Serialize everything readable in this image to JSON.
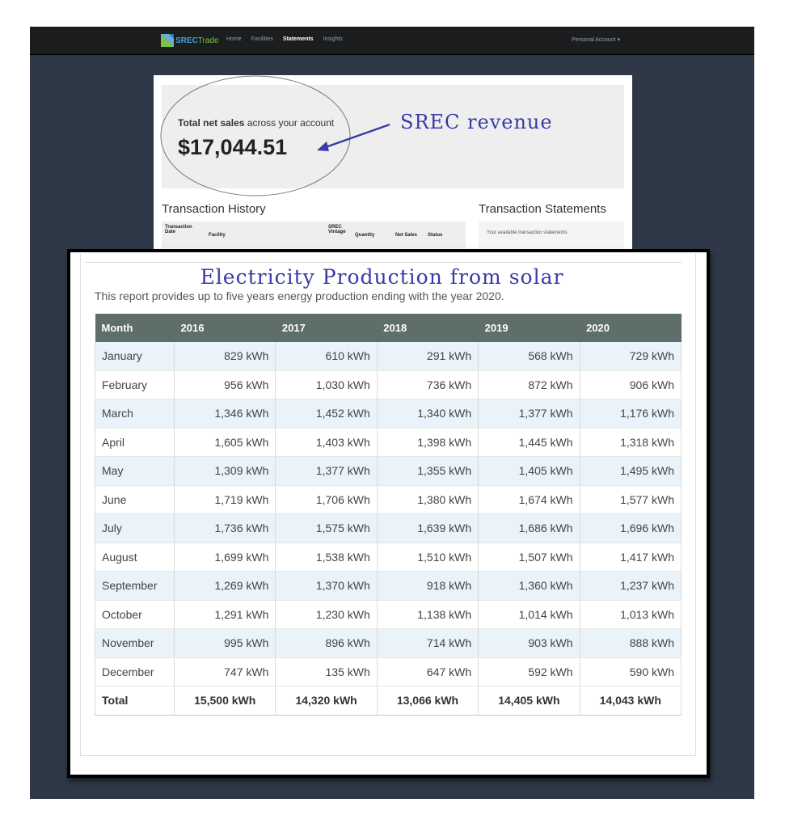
{
  "navbar": {
    "logo_a": "SREC",
    "logo_b": "Trade",
    "links": [
      "Home",
      "Facilities",
      "Statements",
      "Insights"
    ],
    "active_index": 2,
    "account": "Personal Account ▾"
  },
  "summary": {
    "label_bold": "Total net sales",
    "label_rest": " across your account",
    "amount": "$17,044.51",
    "annotation": "SREC revenue"
  },
  "transaction_history": {
    "title": "Transaction History",
    "columns": [
      "Transaction Date",
      "Facility",
      "SREC Vintage",
      "Quantity",
      "Net Sales",
      "Status"
    ]
  },
  "transaction_statements": {
    "title": "Transaction Statements",
    "text": "Your available transaction statements"
  },
  "report": {
    "title": "Electricity Production from solar",
    "subtitle": "This report provides up to five years energy production ending with the year 2020.",
    "headers": [
      "Month",
      "2016",
      "2017",
      "2018",
      "2019",
      "2020"
    ],
    "rows": [
      [
        "January",
        "829 kWh",
        "610 kWh",
        "291 kWh",
        "568 kWh",
        "729 kWh"
      ],
      [
        "February",
        "956 kWh",
        "1,030 kWh",
        "736 kWh",
        "872 kWh",
        "906 kWh"
      ],
      [
        "March",
        "1,346 kWh",
        "1,452 kWh",
        "1,340 kWh",
        "1,377 kWh",
        "1,176 kWh"
      ],
      [
        "April",
        "1,605 kWh",
        "1,403 kWh",
        "1,398 kWh",
        "1,445 kWh",
        "1,318 kWh"
      ],
      [
        "May",
        "1,309 kWh",
        "1,377 kWh",
        "1,355 kWh",
        "1,405 kWh",
        "1,495 kWh"
      ],
      [
        "June",
        "1,719 kWh",
        "1,706 kWh",
        "1,380 kWh",
        "1,674 kWh",
        "1,577 kWh"
      ],
      [
        "July",
        "1,736 kWh",
        "1,575 kWh",
        "1,639 kWh",
        "1,686 kWh",
        "1,696 kWh"
      ],
      [
        "August",
        "1,699 kWh",
        "1,538 kWh",
        "1,510 kWh",
        "1,507 kWh",
        "1,417 kWh"
      ],
      [
        "September",
        "1,269 kWh",
        "1,370 kWh",
        "918 kWh",
        "1,360 kWh",
        "1,237 kWh"
      ],
      [
        "October",
        "1,291 kWh",
        "1,230 kWh",
        "1,138 kWh",
        "1,014 kWh",
        "1,013 kWh"
      ],
      [
        "November",
        "995 kWh",
        "896 kWh",
        "714 kWh",
        "903 kWh",
        "888 kWh"
      ],
      [
        "December",
        "747 kWh",
        "135 kWh",
        "647 kWh",
        "592 kWh",
        "590 kWh"
      ]
    ],
    "total": [
      "Total",
      "15,500 kWh",
      "14,320 kWh",
      "13,066 kWh",
      "14,405 kWh",
      "14,043 kWh"
    ]
  },
  "colors": {
    "background": "#2e3846",
    "navbar": "#1b1d1f",
    "annotation": "#3a3aa8",
    "table_header": "#5e6e6b",
    "row_stripe": "#eaf2fa"
  }
}
